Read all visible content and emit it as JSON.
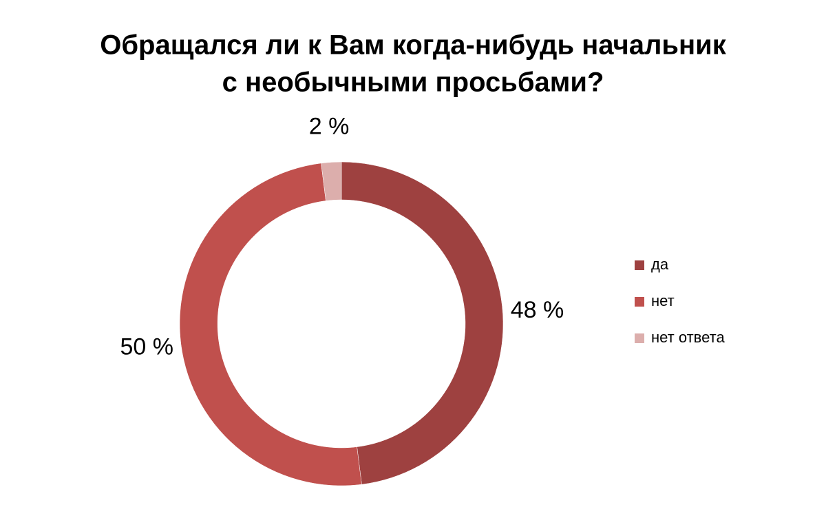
{
  "chart_data": {
    "type": "donut",
    "title": [
      "Обращался ли к Вам когда-нибудь начальник",
      "с необычными просьбами?"
    ],
    "categories": [
      "да",
      "нет",
      "нет ответа"
    ],
    "values": [
      48,
      50,
      2
    ],
    "value_labels": [
      "48 %",
      "50 %",
      "2 %"
    ],
    "colors": [
      "#9e4140",
      "#c0504d",
      "#dcaeac"
    ],
    "legend": "right"
  }
}
